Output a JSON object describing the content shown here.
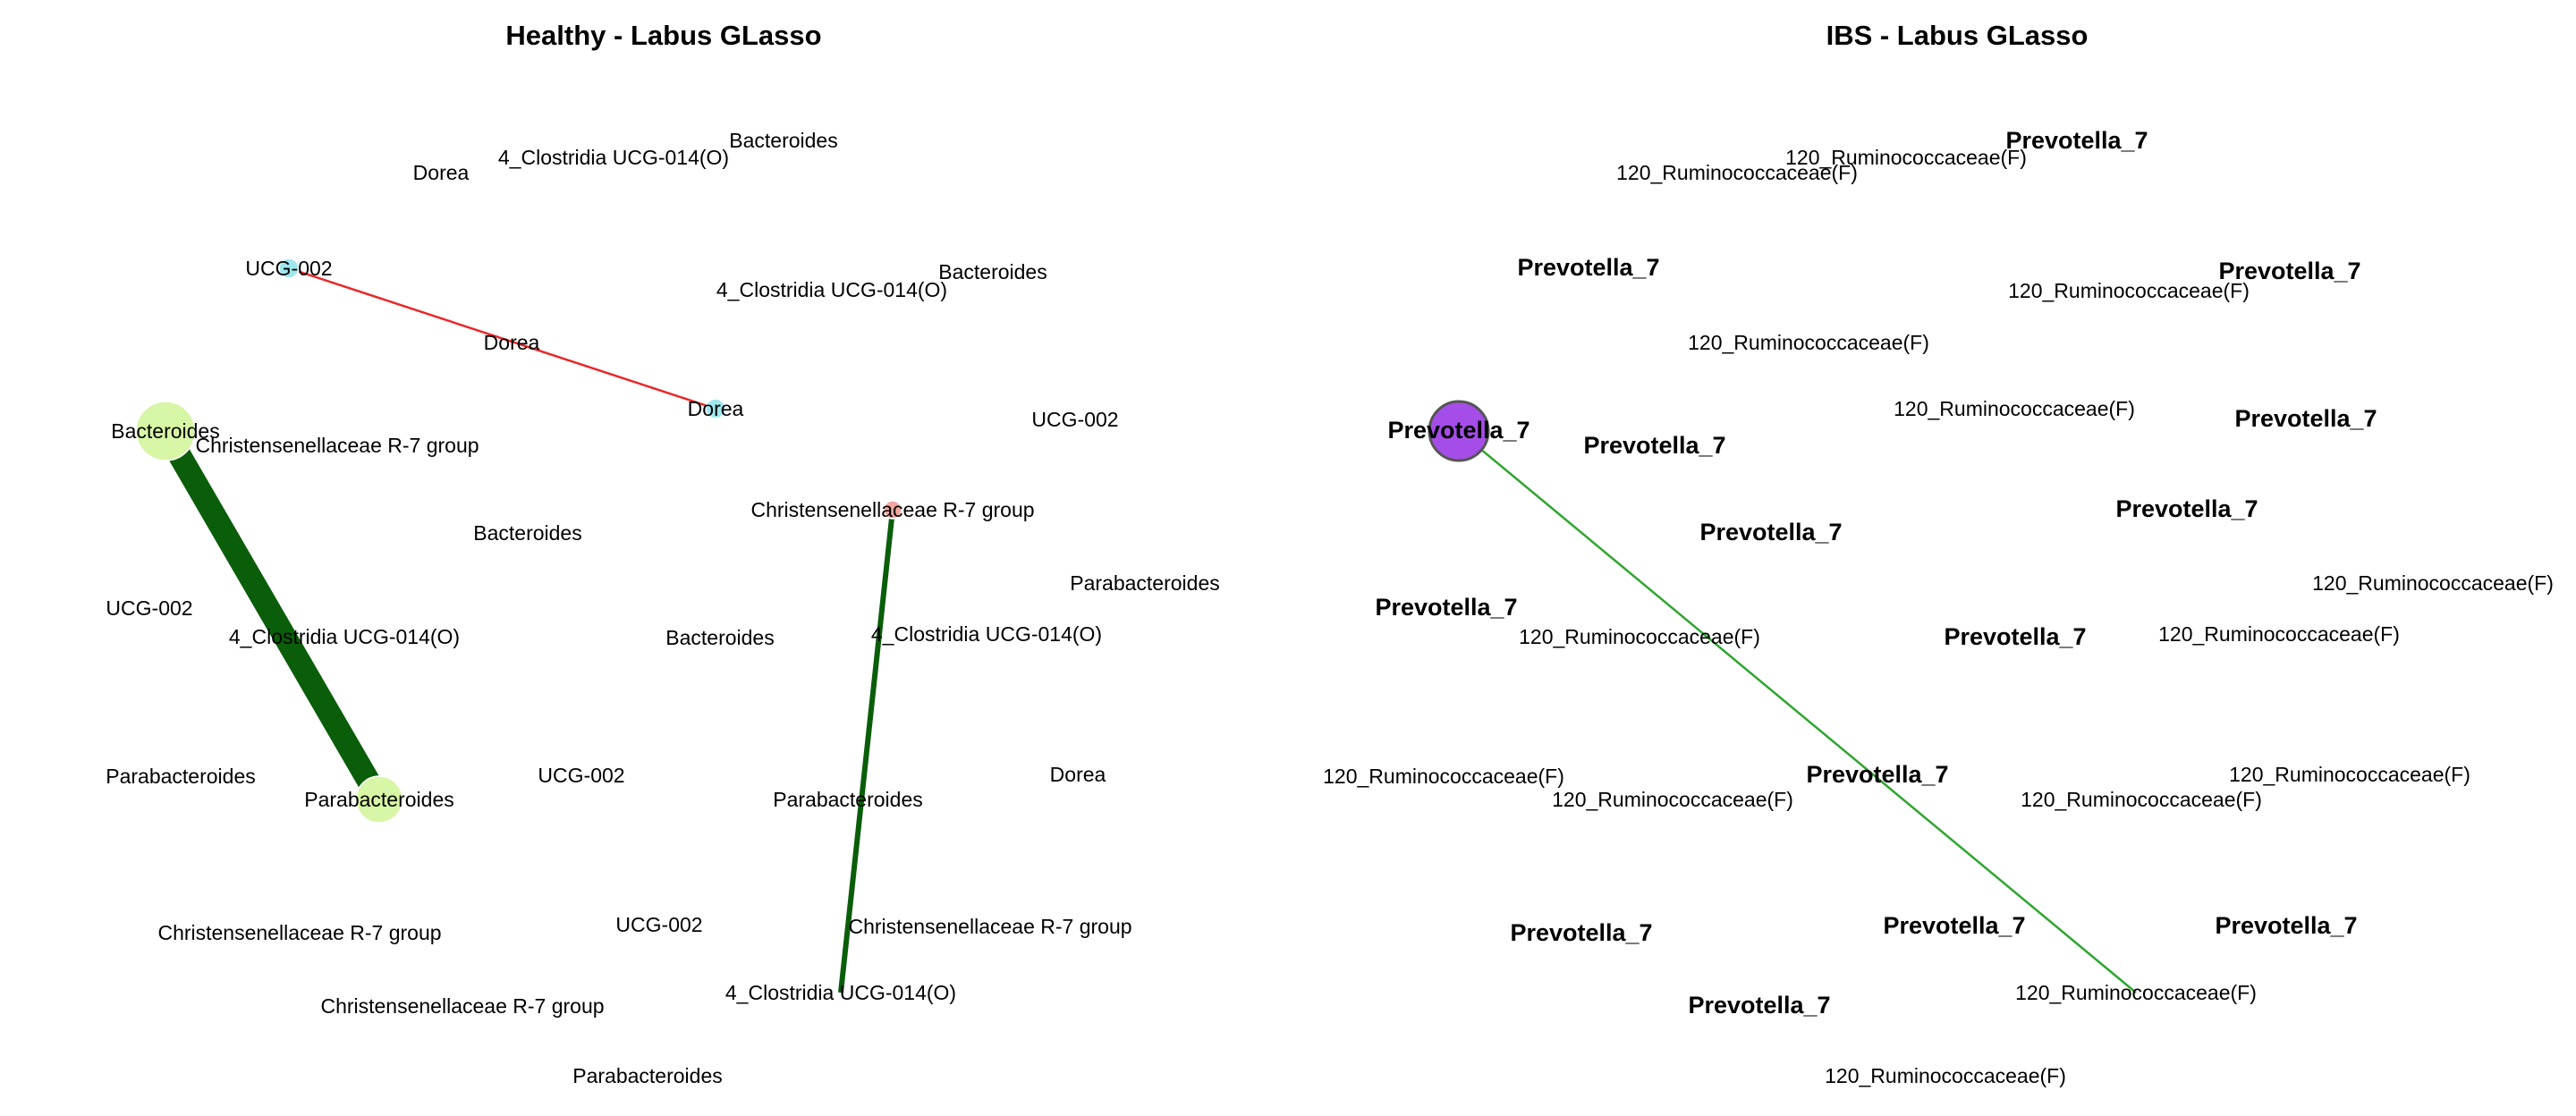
{
  "panels": [
    {
      "title": "Healthy - Labus GLasso",
      "nodes": [
        {
          "label": "Dorea"
        },
        {
          "label": "4_Clostridia UCG-014(O)"
        },
        {
          "label": "Bacteroides"
        },
        {
          "label": "UCG-002",
          "color": "#9fe8ef"
        },
        {
          "label": "Bacteroides"
        },
        {
          "label": "4_Clostridia UCG-014(O)"
        },
        {
          "label": "Dorea"
        },
        {
          "label": "Dorea",
          "color": "#9fe8ef"
        },
        {
          "label": "UCG-002"
        },
        {
          "label": "Bacteroides",
          "color": "#d7f6a6"
        },
        {
          "label": "Christensenellaceae R-7 group"
        },
        {
          "label": "Christensenellaceae R-7 group",
          "color": "#f4a7a0"
        },
        {
          "label": "Bacteroides"
        },
        {
          "label": "Parabacteroides"
        },
        {
          "label": "UCG-002"
        },
        {
          "label": "4_Clostridia UCG-014(O)"
        },
        {
          "label": "Bacteroides"
        },
        {
          "label": "4_Clostridia UCG-014(O)"
        },
        {
          "label": "Parabacteroides"
        },
        {
          "label": "UCG-002"
        },
        {
          "label": "Dorea"
        },
        {
          "label": "Parabacteroides",
          "color": "#d7f6a6"
        },
        {
          "label": "Parabacteroides"
        },
        {
          "label": "UCG-002"
        },
        {
          "label": "Christensenellaceae R-7 group"
        },
        {
          "label": "Christensenellaceae R-7 group"
        },
        {
          "label": "4_Clostridia UCG-014(O)"
        },
        {
          "label": "Christensenellaceae R-7 group"
        },
        {
          "label": "Parabacteroides"
        }
      ],
      "edges": [
        {
          "from": 3,
          "to": 7,
          "color": "#e8282a"
        },
        {
          "from": 9,
          "to": 21,
          "color": "#0a5e0a"
        },
        {
          "from": 11,
          "to": 26,
          "color": "#0a5e0a"
        }
      ]
    },
    {
      "title": "IBS - Labus GLasso",
      "nodes": [
        {
          "label": "Prevotella_7",
          "bold": true
        },
        {
          "label": "120_Ruminococcaceae(F)"
        },
        {
          "label": "120_Ruminococcaceae(F)"
        },
        {
          "label": "Prevotella_7",
          "bold": true
        },
        {
          "label": "Prevotella_7",
          "bold": true
        },
        {
          "label": "120_Ruminococcaceae(F)"
        },
        {
          "label": "120_Ruminococcaceae(F)"
        },
        {
          "label": "120_Ruminococcaceae(F)"
        },
        {
          "label": "Prevotella_7",
          "bold": true
        },
        {
          "label": "Prevotella_7",
          "bold": true,
          "color": "#a54de8"
        },
        {
          "label": "Prevotella_7",
          "bold": true
        },
        {
          "label": "Prevotella_7",
          "bold": true
        },
        {
          "label": "Prevotella_7",
          "bold": true
        },
        {
          "label": "120_Ruminococcaceae(F)"
        },
        {
          "label": "Prevotella_7",
          "bold": true
        },
        {
          "label": "120_Ruminococcaceae(F)"
        },
        {
          "label": "Prevotella_7",
          "bold": true
        },
        {
          "label": "120_Ruminococcaceae(F)"
        },
        {
          "label": "120_Ruminococcaceae(F)"
        },
        {
          "label": "120_Ruminococcaceae(F)"
        },
        {
          "label": "Prevotella_7",
          "bold": true
        },
        {
          "label": "120_Ruminococcaceae(F)"
        },
        {
          "label": "120_Ruminococcaceae(F)"
        },
        {
          "label": "Prevotella_7",
          "bold": true
        },
        {
          "label": "Prevotella_7",
          "bold": true
        },
        {
          "label": "Prevotella_7",
          "bold": true
        },
        {
          "label": "Prevotella_7",
          "bold": true
        },
        {
          "label": "120_Ruminococcaceae(F)"
        },
        {
          "label": "120_Ruminococcaceae(F)"
        }
      ],
      "edges": [
        {
          "from": 9,
          "to": 27,
          "color": "#2ea62e"
        }
      ]
    }
  ]
}
